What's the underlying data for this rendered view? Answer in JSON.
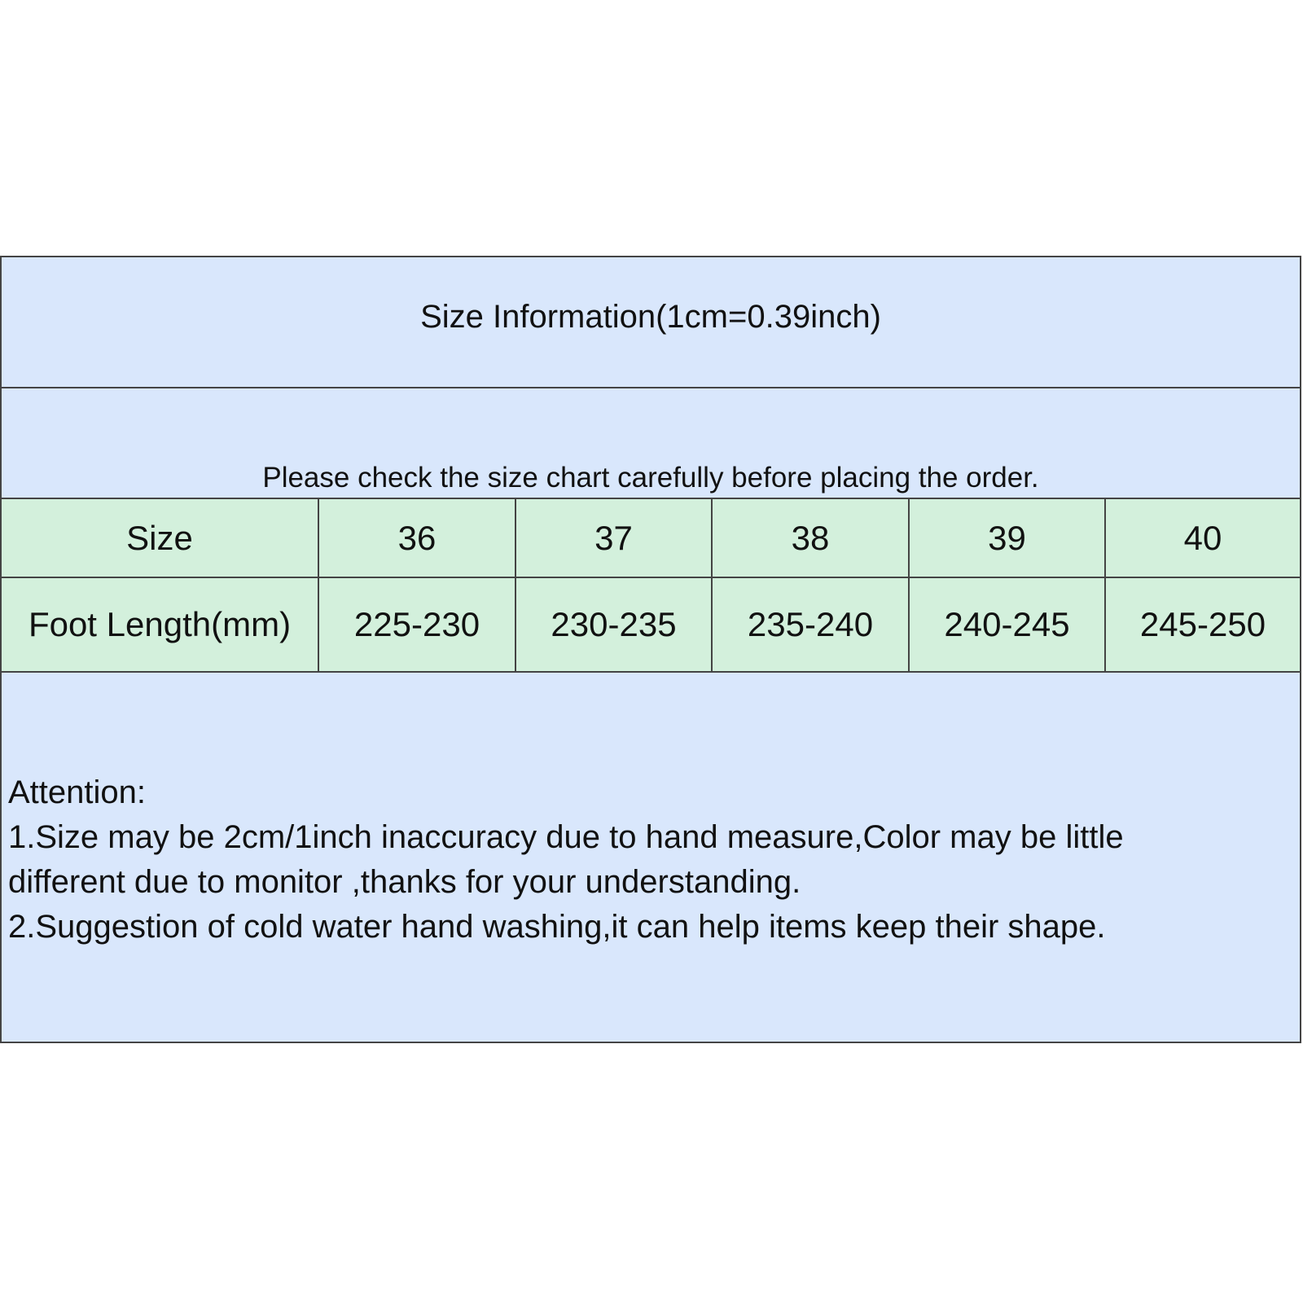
{
  "title": "Size Information(1cm=0.39inch)",
  "notice": "Please check the size chart carefully before placing the order.",
  "table": {
    "header": [
      "Size",
      "36",
      "37",
      "38",
      "39",
      "40"
    ],
    "row": [
      "Foot Length(mm)",
      "225-230",
      "230-235",
      "235-240",
      "240-245",
      "245-250"
    ]
  },
  "attention": {
    "heading": "Attention:",
    "lines": [
      "1.Size may be 2cm/1inch inaccuracy due to hand measure,Color may be little",
      "different due to monitor ,thanks for your understanding.",
      "2.Suggestion of cold water hand washing,it can help items keep their shape."
    ]
  },
  "colors": {
    "header_bg": "#d9e7fc",
    "table_bg": "#d3f0dc",
    "border": "#444444"
  }
}
